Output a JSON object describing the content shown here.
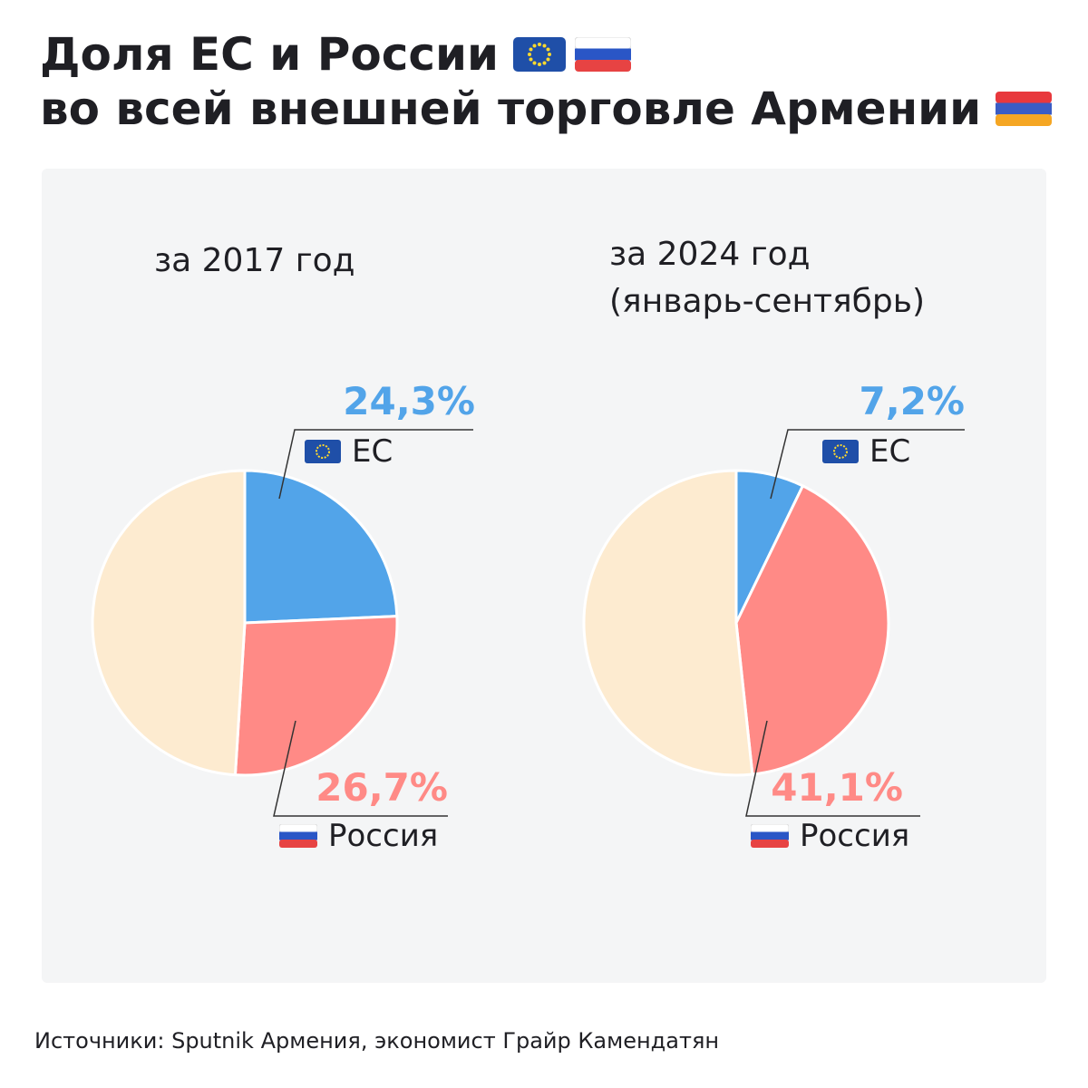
{
  "title": {
    "line1": "Доля ЕС и России",
    "line2": "во всей внешней торговле Армении"
  },
  "icons": {
    "eu_flag": "eu-flag-icon",
    "russia_flag": "russia-flag-icon",
    "armenia_flag": "armenia-flag-icon"
  },
  "colors": {
    "eu": "#52a4e9",
    "russia": "#ff8a86",
    "other": "#fdebd0",
    "leader_line": "#333333",
    "panel": "#f4f5f6"
  },
  "chart_data": [
    {
      "type": "pie",
      "title": "за 2017 год",
      "subtitle": "",
      "slices": [
        {
          "name": "ЕС",
          "value": 24.3,
          "label": "24,3%"
        },
        {
          "name": "Россия",
          "value": 26.7,
          "label": "26,7%"
        },
        {
          "name": "",
          "value": 49.0,
          "label": ""
        }
      ]
    },
    {
      "type": "pie",
      "title": "за 2024 год",
      "subtitle": "(январь-сентябрь)",
      "slices": [
        {
          "name": "ЕС",
          "value": 7.2,
          "label": "7,2%"
        },
        {
          "name": "Россия",
          "value": 41.1,
          "label": "41,1%"
        },
        {
          "name": "",
          "value": 51.7,
          "label": ""
        }
      ]
    }
  ],
  "source": "Источники: Sputnik Армения, экономист Грайр Камендатян"
}
